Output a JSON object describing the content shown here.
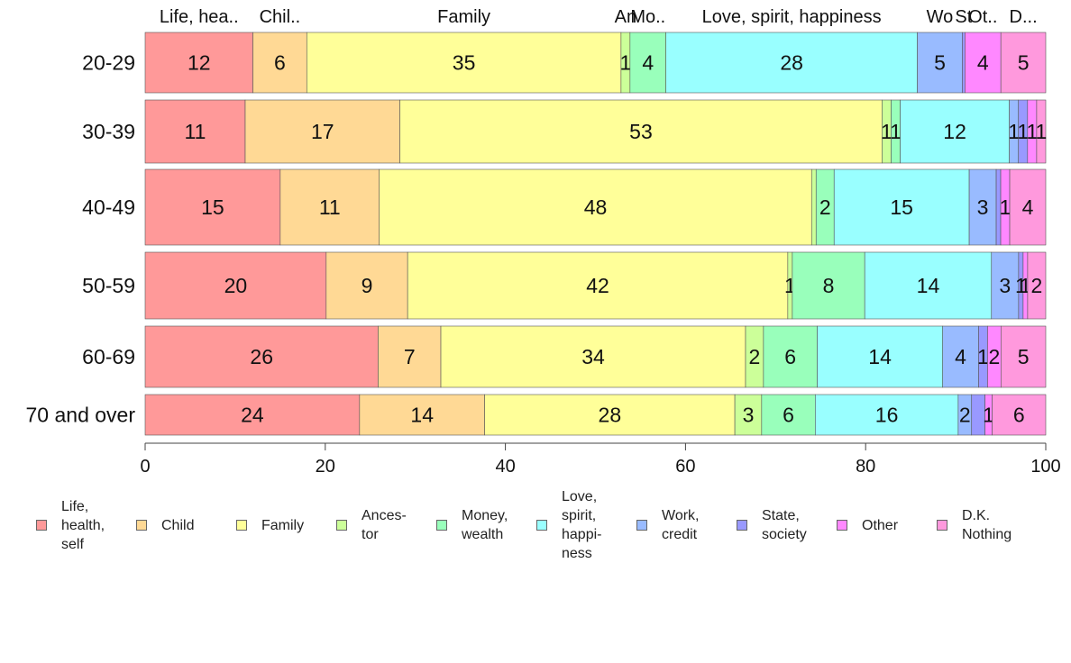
{
  "chart_data": {
    "type": "bar",
    "orientation": "horizontal",
    "stacked": true,
    "xlim": [
      0,
      100
    ],
    "x_ticks": [
      "0",
      "20",
      "40",
      "60",
      "80",
      "100"
    ],
    "categories": [
      "20-29",
      "30-39",
      "40-49",
      "50-59",
      "60-69",
      "70 and over"
    ],
    "top_labels": [
      "Life, hea..",
      "Chil..",
      "Family",
      "An",
      "Mo..",
      "Love, spirit, happiness",
      "Wo",
      "St",
      "Ot..",
      "D..."
    ],
    "series": [
      {
        "name": "Life,\nhealth,\nself",
        "color": "#ff9999",
        "values": [
          12,
          11,
          15,
          20,
          26,
          24
        ],
        "labels": [
          "12",
          "11",
          "15",
          "20",
          "26",
          "24"
        ]
      },
      {
        "name": "Child",
        "color": "#ffd995",
        "values": [
          6,
          17,
          11,
          9,
          7,
          14
        ],
        "labels": [
          "6",
          "17",
          "11",
          "9",
          "7",
          "14"
        ]
      },
      {
        "name": "Family",
        "color": "#ffff99",
        "values": [
          35,
          53,
          48,
          42,
          34,
          28
        ],
        "labels": [
          "35",
          "53",
          "48",
          "42",
          "34",
          "28"
        ]
      },
      {
        "name": "Ances-\ntor",
        "color": "#ccff99",
        "values": [
          1,
          1,
          0.5,
          0.5,
          2,
          3
        ],
        "labels": [
          "1",
          "1",
          "",
          "1",
          "2",
          "3"
        ]
      },
      {
        "name": "Money,\nwealth",
        "color": "#99ffbb",
        "values": [
          4,
          1,
          2,
          8,
          6,
          6
        ],
        "labels": [
          "4",
          "1",
          "2",
          "8",
          "6",
          "6"
        ]
      },
      {
        "name": "Love,\nspirit,\nhappi-\nness",
        "color": "#99ffff",
        "values": [
          28,
          12,
          15,
          14,
          14,
          16
        ],
        "labels": [
          "28",
          "12",
          "15",
          "14",
          "14",
          "16"
        ]
      },
      {
        "name": "Work,\ncredit",
        "color": "#99bbff",
        "values": [
          5,
          1,
          3,
          3,
          4,
          1.5
        ],
        "labels": [
          "5",
          "1",
          "3",
          "3",
          "4",
          "2"
        ]
      },
      {
        "name": "State,\nsociety",
        "color": "#9999ff",
        "values": [
          0.3,
          1,
          0.5,
          0.5,
          1,
          1.5
        ],
        "labels": [
          "",
          "1",
          "",
          "1",
          "1",
          ""
        ]
      },
      {
        "name": "Other",
        "color": "#ff88ff",
        "values": [
          4,
          1,
          1,
          0.5,
          1.5,
          0.8
        ],
        "labels": [
          "4",
          "1",
          "1",
          "1",
          "2",
          "1"
        ]
      },
      {
        "name": "D.K.\nNothing",
        "color": "#ff99dd",
        "values": [
          5,
          1,
          4,
          2,
          5,
          6
        ],
        "labels": [
          "5",
          "1",
          "4",
          "2",
          "5",
          "6"
        ]
      }
    ]
  }
}
